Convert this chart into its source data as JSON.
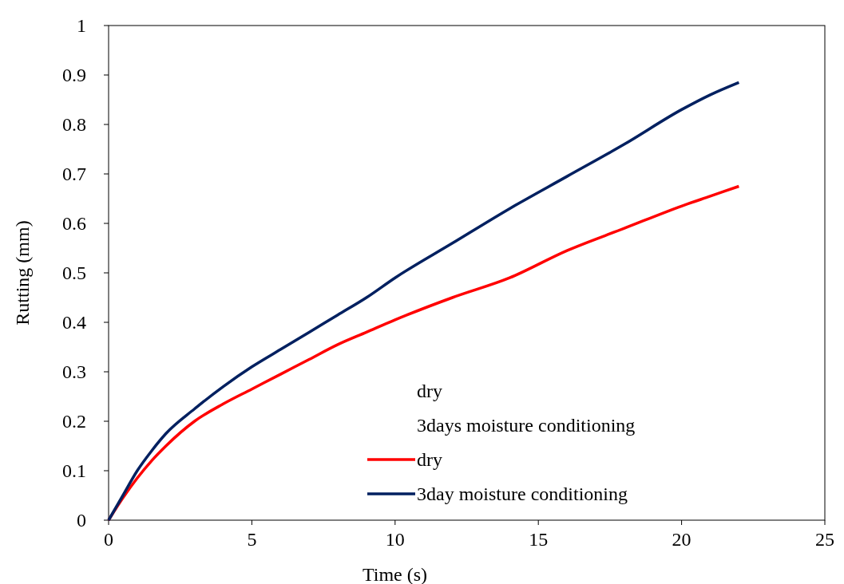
{
  "chart_data": {
    "type": "line",
    "xlabel": "Time (s)",
    "ylabel": "Rutting (mm)",
    "xlim": [
      0,
      25
    ],
    "xticks": [
      0,
      5,
      10,
      15,
      20,
      25
    ],
    "ylim": [
      0,
      1
    ],
    "yticks": [
      0,
      0.1,
      0.2,
      0.3,
      0.4,
      0.5,
      0.6,
      0.7,
      0.8,
      0.9,
      1
    ],
    "grid": false,
    "legend": "bottom right",
    "marker": "none",
    "line_style": "solid",
    "annotations": [
      "dry",
      "3days moisture conditioning"
    ],
    "series": [
      {
        "name": "dry",
        "color": "#ff0000",
        "x": [
          0,
          0.5,
          1,
          1.5,
          2,
          3,
          4,
          5,
          6,
          7,
          8,
          9,
          10,
          12,
          14,
          16,
          18,
          20,
          21,
          22
        ],
        "values": [
          0,
          0.045,
          0.085,
          0.12,
          0.15,
          0.2,
          0.235,
          0.265,
          0.295,
          0.325,
          0.355,
          0.38,
          0.405,
          0.45,
          0.49,
          0.545,
          0.59,
          0.635,
          0.655,
          0.675
        ]
      },
      {
        "name": "3day moisture conditioning",
        "color": "#002060",
        "x": [
          0,
          0.5,
          1,
          1.5,
          2,
          3,
          4,
          5,
          6,
          7,
          8,
          9,
          10,
          12,
          14,
          16,
          18,
          20,
          21,
          22
        ],
        "values": [
          0,
          0.05,
          0.1,
          0.14,
          0.175,
          0.225,
          0.27,
          0.31,
          0.345,
          0.38,
          0.415,
          0.45,
          0.49,
          0.56,
          0.63,
          0.695,
          0.76,
          0.83,
          0.86,
          0.885
        ]
      }
    ]
  }
}
